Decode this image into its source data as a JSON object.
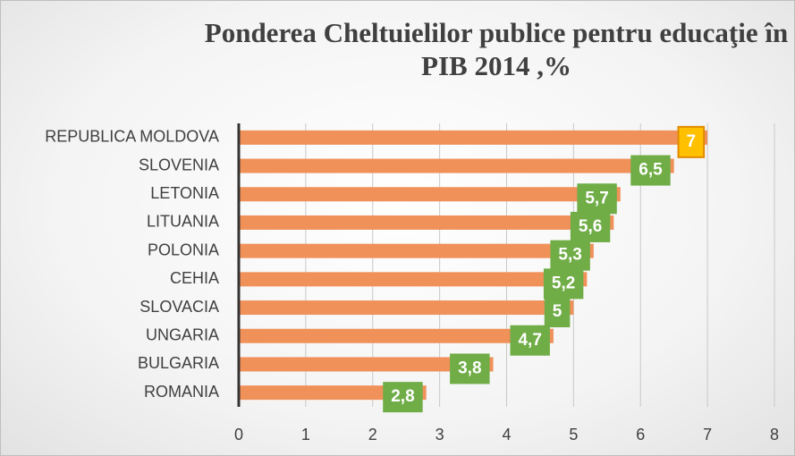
{
  "chart_data": {
    "type": "bar",
    "orientation": "horizontal",
    "title": "Ponderea Cheltuielilor publice pentru educaţie în PIB 2014 ,%",
    "categories": [
      "REPUBLICA MOLDOVA",
      "SLOVENIA",
      "LETONIA",
      "LITUANIA",
      "POLONIA",
      "CEHIA",
      "SLOVACIA",
      "UNGARIA",
      "BULGARIA",
      "ROMANIA"
    ],
    "values": [
      7,
      6.5,
      5.7,
      5.6,
      5.3,
      5.2,
      5,
      4.7,
      3.8,
      2.8
    ],
    "value_labels": [
      "7",
      "6,5",
      "5,7",
      "5,6",
      "5,3",
      "5,2",
      "5",
      "4,7",
      "3,8",
      "2,8"
    ],
    "color": "#f0915a",
    "label_colors": [
      "#ffc000",
      "#70ad47",
      "#70ad47",
      "#70ad47",
      "#70ad47",
      "#70ad47",
      "#70ad47",
      "#70ad47",
      "#70ad47",
      "#70ad47"
    ],
    "xlim": [
      0,
      8
    ],
    "xticks": [
      0,
      1,
      2,
      3,
      4,
      5,
      6,
      7,
      8
    ],
    "grid": true
  }
}
